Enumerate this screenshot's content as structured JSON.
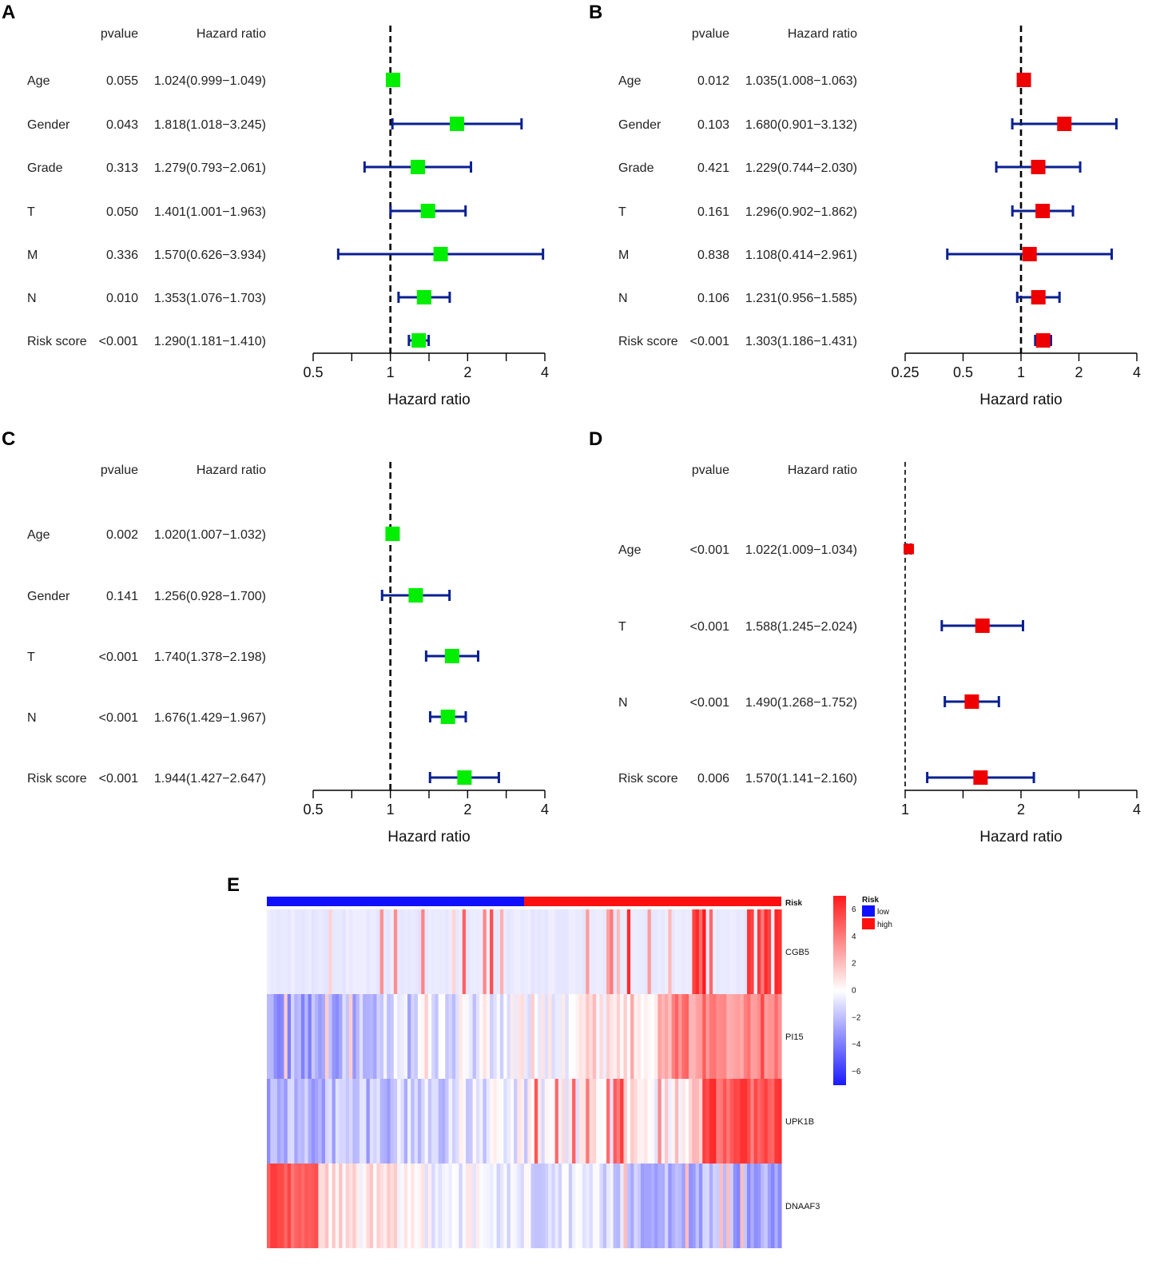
{
  "chart_data": [
    {
      "type": "forest",
      "panel": "A",
      "col_pvalue": "pvalue",
      "col_hr": "Hazard ratio",
      "xlabel": "Hazard ratio",
      "scale": "log",
      "xlim": [
        0.5,
        4
      ],
      "ticks": [
        {
          "v": 0.5,
          "label": "0.5"
        },
        {
          "v": 0.707,
          "label": ""
        },
        {
          "v": 1,
          "label": "1"
        },
        {
          "v": 1.414,
          "label": ""
        },
        {
          "v": 2,
          "label": "2"
        },
        {
          "v": 2.828,
          "label": ""
        },
        {
          "v": 4,
          "label": "4"
        }
      ],
      "ref_line": 1,
      "marker_color": "#00ee00",
      "line_color": "#0a1f8f",
      "rows": [
        {
          "name": "Age",
          "p": "0.055",
          "hr_text": "1.024(0.999−1.049)",
          "hr": 1.024,
          "lo": 0.999,
          "hi": 1.049
        },
        {
          "name": "Gender",
          "p": "0.043",
          "hr_text": "1.818(1.018−3.245)",
          "hr": 1.818,
          "lo": 1.018,
          "hi": 3.245
        },
        {
          "name": "Grade",
          "p": "0.313",
          "hr_text": "1.279(0.793−2.061)",
          "hr": 1.279,
          "lo": 0.793,
          "hi": 2.061
        },
        {
          "name": "T",
          "p": "0.050",
          "hr_text": "1.401(1.001−1.963)",
          "hr": 1.401,
          "lo": 1.001,
          "hi": 1.963
        },
        {
          "name": "M",
          "p": "0.336",
          "hr_text": "1.570(0.626−3.934)",
          "hr": 1.57,
          "lo": 0.626,
          "hi": 3.934
        },
        {
          "name": "N",
          "p": "0.010",
          "hr_text": "1.353(1.076−1.703)",
          "hr": 1.353,
          "lo": 1.076,
          "hi": 1.703
        },
        {
          "name": "Risk score",
          "p": "<0.001",
          "hr_text": "1.290(1.181−1.410)",
          "hr": 1.29,
          "lo": 1.181,
          "hi": 1.41
        }
      ]
    },
    {
      "type": "forest",
      "panel": "B",
      "col_pvalue": "pvalue",
      "col_hr": "Hazard ratio",
      "xlabel": "Hazard ratio",
      "scale": "log",
      "xlim": [
        0.25,
        4
      ],
      "ticks": [
        {
          "v": 0.25,
          "label": "0.25"
        },
        {
          "v": 0.5,
          "label": "0.5"
        },
        {
          "v": 1,
          "label": "1"
        },
        {
          "v": 2,
          "label": "2"
        },
        {
          "v": 4,
          "label": "4"
        }
      ],
      "ref_line": 1,
      "marker_color": "#ee0000",
      "line_color": "#0a1f8f",
      "rows": [
        {
          "name": "Age",
          "p": "0.012",
          "hr_text": "1.035(1.008−1.063)",
          "hr": 1.035,
          "lo": 1.008,
          "hi": 1.063
        },
        {
          "name": "Gender",
          "p": "0.103",
          "hr_text": "1.680(0.901−3.132)",
          "hr": 1.68,
          "lo": 0.901,
          "hi": 3.132
        },
        {
          "name": "Grade",
          "p": "0.421",
          "hr_text": "1.229(0.744−2.030)",
          "hr": 1.229,
          "lo": 0.744,
          "hi": 2.03
        },
        {
          "name": "T",
          "p": "0.161",
          "hr_text": "1.296(0.902−1.862)",
          "hr": 1.296,
          "lo": 0.902,
          "hi": 1.862
        },
        {
          "name": "M",
          "p": "0.838",
          "hr_text": "1.108(0.414−2.961)",
          "hr": 1.108,
          "lo": 0.414,
          "hi": 2.961
        },
        {
          "name": "N",
          "p": "0.106",
          "hr_text": "1.231(0.956−1.585)",
          "hr": 1.231,
          "lo": 0.956,
          "hi": 1.585
        },
        {
          "name": "Risk score",
          "p": "<0.001",
          "hr_text": "1.303(1.186−1.431)",
          "hr": 1.303,
          "lo": 1.186,
          "hi": 1.431
        }
      ]
    },
    {
      "type": "forest",
      "panel": "C",
      "col_pvalue": "pvalue",
      "col_hr": "Hazard ratio",
      "xlabel": "Hazard ratio",
      "scale": "log",
      "xlim": [
        0.5,
        4
      ],
      "ticks": [
        {
          "v": 0.5,
          "label": "0.5"
        },
        {
          "v": 0.707,
          "label": ""
        },
        {
          "v": 1,
          "label": "1"
        },
        {
          "v": 1.414,
          "label": ""
        },
        {
          "v": 2,
          "label": "2"
        },
        {
          "v": 2.828,
          "label": ""
        },
        {
          "v": 4,
          "label": "4"
        }
      ],
      "ref_line": 1,
      "marker_color": "#00ee00",
      "line_color": "#0a1f8f",
      "rows": [
        {
          "name": "Age",
          "p": "0.002",
          "hr_text": "1.020(1.007−1.032)",
          "hr": 1.02,
          "lo": 1.007,
          "hi": 1.032
        },
        {
          "name": "Gender",
          "p": "0.141",
          "hr_text": "1.256(0.928−1.700)",
          "hr": 1.256,
          "lo": 0.928,
          "hi": 1.7
        },
        {
          "name": "T",
          "p": "<0.001",
          "hr_text": "1.740(1.378−2.198)",
          "hr": 1.74,
          "lo": 1.378,
          "hi": 2.198
        },
        {
          "name": "N",
          "p": "<0.001",
          "hr_text": "1.676(1.429−1.967)",
          "hr": 1.676,
          "lo": 1.429,
          "hi": 1.967
        },
        {
          "name": "Risk score",
          "p": "<0.001",
          "hr_text": "1.944(1.427−2.647)",
          "hr": 1.944,
          "lo": 1.427,
          "hi": 2.647
        }
      ]
    },
    {
      "type": "forest",
      "panel": "D",
      "col_pvalue": "pvalue",
      "col_hr": "Hazard ratio",
      "xlabel": "Hazard ratio",
      "scale": "log",
      "xlim": [
        1,
        4
      ],
      "ticks": [
        {
          "v": 1,
          "label": "1"
        },
        {
          "v": 1.414,
          "label": ""
        },
        {
          "v": 2,
          "label": "2"
        },
        {
          "v": 2.828,
          "label": ""
        },
        {
          "v": 4,
          "label": "4"
        }
      ],
      "ref_line": 1,
      "marker_color": "#ee0000",
      "line_color": "#0a1f8f",
      "rows": [
        {
          "name": "Age",
          "p": "<0.001",
          "hr_text": "1.022(1.009−1.034)",
          "hr": 1.022,
          "lo": 1.009,
          "hi": 1.034
        },
        {
          "name": "T",
          "p": "<0.001",
          "hr_text": "1.588(1.245−2.024)",
          "hr": 1.588,
          "lo": 1.245,
          "hi": 2.024
        },
        {
          "name": "N",
          "p": "<0.001",
          "hr_text": "1.490(1.268−1.752)",
          "hr": 1.49,
          "lo": 1.268,
          "hi": 1.752
        },
        {
          "name": "Risk score",
          "p": "0.006",
          "hr_text": "1.570(1.141−2.160)",
          "hr": 1.57,
          "lo": 1.141,
          "hi": 2.16
        }
      ]
    },
    {
      "type": "heatmap",
      "panel": "E",
      "genes": [
        "CGB5",
        "PI15",
        "UPK1B",
        "DNAAF3"
      ],
      "annotation_label": "Risk",
      "annotation_groups": [
        {
          "name": "low",
          "color": "#1010ff",
          "fraction": 0.5
        },
        {
          "name": "high",
          "color": "#ff1010",
          "fraction": 0.5
        }
      ],
      "legend_title": "Risk",
      "color_scale": {
        "min": -7,
        "max": 7,
        "low_color": "#1a1aff",
        "mid_color": "#ffffff",
        "high_color": "#ff1a1a",
        "ticks": [
          6,
          4,
          2,
          0,
          -2,
          -4,
          -6
        ]
      },
      "n_samples": 150,
      "row_patterns": {
        "CGB5": "mostly slightly low (pale blue) with scattered strong high columns increasing toward the high-risk side",
        "PI15": "blue in low-risk half, increasingly red in high-risk half",
        "UPK1B": "blue in low-risk half, strongly red in far right of high-risk half",
        "DNAAF3": "strong red at far left of low-risk half, blue in high-risk half"
      }
    }
  ]
}
